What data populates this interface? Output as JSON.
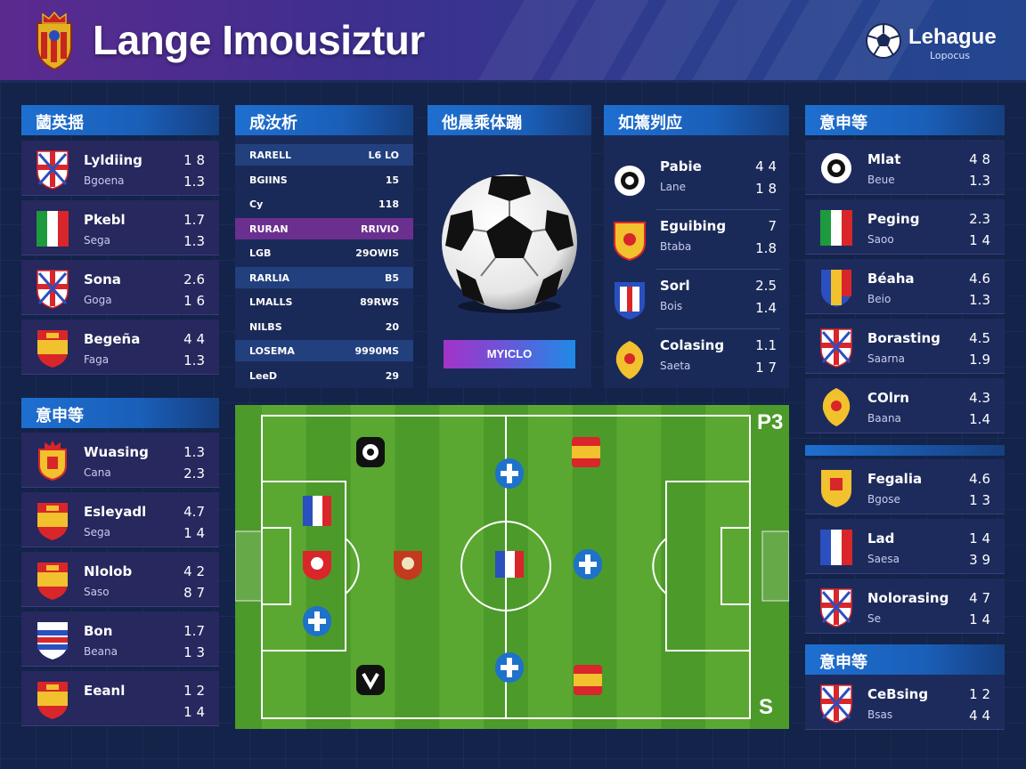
{
  "header": {
    "title": "Lange Imousiztur",
    "brand_name": "Lehague",
    "brand_sub": "Lopocus"
  },
  "left_top": {
    "heading": "蔮英揺",
    "rows": [
      {
        "name": "Lyldiing",
        "sub": "Bgoena",
        "v1": "1 8",
        "v2": "1.3",
        "flag": "cross"
      },
      {
        "name": "Pkebl",
        "sub": "Sega",
        "v1": "1.7",
        "v2": "1.3",
        "flag": "italy"
      },
      {
        "name": "Sona",
        "sub": "Goga",
        "v1": "2.6",
        "v2": "1 6",
        "flag": "cross"
      },
      {
        "name": "Begeña",
        "sub": "Faga",
        "v1": "4 4",
        "v2": "1.3",
        "flag": "spain"
      }
    ]
  },
  "left_bottom": {
    "heading": "意申等",
    "rows": [
      {
        "name": "Wuasing",
        "sub": "Cana",
        "v1": "1.3",
        "v2": "2.3",
        "flag": "crest-red"
      },
      {
        "name": "Esleyadl",
        "sub": "Sega",
        "v1": "4.7",
        "v2": "1 4",
        "flag": "spain"
      },
      {
        "name": "Nlolob",
        "sub": "Saso",
        "v1": "4 2",
        "v2": "8 7",
        "flag": "spain"
      },
      {
        "name": "Bon",
        "sub": "Beana",
        "v1": "1.7",
        "v2": "1 3",
        "flag": "stripes"
      },
      {
        "name": "Eeanl",
        "sub": "",
        "v1": "1 2",
        "v2": "1 4",
        "flag": "spain"
      }
    ]
  },
  "stats": {
    "heading": "成汝析",
    "rows": [
      {
        "label": "RARELL",
        "value": "L6 LO"
      },
      {
        "label": "BGIINS",
        "value": "15"
      },
      {
        "label": "Cy",
        "value": "118"
      },
      {
        "label": "RURAN",
        "value": "RRIVIO"
      },
      {
        "label": "LGB",
        "value": "29OWIS"
      },
      {
        "label": "RARLIA",
        "value": "B5"
      },
      {
        "label": "LMALLS",
        "value": "89RWS"
      },
      {
        "label": "NILBS",
        "value": "20"
      },
      {
        "label": "LOSEMA",
        "value": "9990MS"
      },
      {
        "label": "LeeD",
        "value": "29"
      }
    ]
  },
  "ball_panel": {
    "heading": "他晨乘体蹦",
    "button": "MYICLO"
  },
  "mid_panel": {
    "heading": "如篶刿应",
    "rows": [
      {
        "name": "Pabie",
        "sub": "Lane",
        "v1": "4 4",
        "v2": "1 8",
        "icon": "swirl"
      },
      {
        "name": "Eguibing",
        "sub": "Btaba",
        "v1": "7",
        "v2": "1.8",
        "icon": "shield-yellow"
      },
      {
        "name": "Sorl",
        "sub": "Bois",
        "v1": "2.5",
        "v2": "1.4",
        "icon": "shield-blue"
      },
      {
        "name": "Colasing",
        "sub": "Saeta",
        "v1": "1.1",
        "v2": "1 7",
        "icon": "round-yellow"
      }
    ]
  },
  "right_top": {
    "heading": "意申等",
    "rows": [
      {
        "name": "Mlat",
        "sub": "Beue",
        "v1": "4 8",
        "v2": "1.3",
        "flag": "swirl"
      },
      {
        "name": "Peging",
        "sub": "Saoo",
        "v1": "2.3",
        "v2": "1 4",
        "flag": "italy"
      },
      {
        "name": "Béaha",
        "sub": "Beio",
        "v1": "4.6",
        "v2": "1.3",
        "flag": "crest-tri"
      },
      {
        "name": "Borasting",
        "sub": "Saarna",
        "v1": "4.5",
        "v2": "1.9",
        "flag": "cross"
      },
      {
        "name": "COlrn",
        "sub": "Baana",
        "v1": "4.3",
        "v2": "1.4",
        "flag": "round-yellow"
      }
    ]
  },
  "right_mid": {
    "rows": [
      {
        "name": "Fegalia",
        "sub": "Bgose",
        "v1": "4.6",
        "v2": "1 3",
        "flag": "crest-yellow"
      },
      {
        "name": "Lad",
        "sub": "Saesa",
        "v1": "1 4",
        "v2": "3 9",
        "flag": "france"
      },
      {
        "name": "Nolorasing",
        "sub": "Se",
        "v1": "4 7",
        "v2": "1 4",
        "flag": "cross"
      }
    ]
  },
  "right_bottom": {
    "heading": "意申等",
    "rows": [
      {
        "name": "CeBsing",
        "sub": "Bsas",
        "v1": "1 2",
        "v2": "4 4",
        "flag": "cross"
      }
    ]
  },
  "pitch": {
    "corner_top": "P3",
    "corner_bottom": "S"
  },
  "colors": {
    "header_left": "#5b2a8f",
    "header_right": "#23468f",
    "panel_head": "#1e6fd1",
    "pitch_light": "#5aa832",
    "pitch_dark": "#4c9a2a"
  }
}
